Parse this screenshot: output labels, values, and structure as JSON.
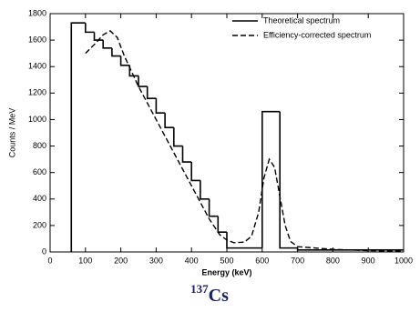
{
  "chart_data": {
    "type": "histogram",
    "title_isotope": "137",
    "title": "Cs",
    "xlabel": "Energy (keV)",
    "ylabel": "Counts / MeV",
    "xlim": [
      0,
      1000
    ],
    "ylim": [
      0,
      1800
    ],
    "xticks": [
      0,
      100,
      200,
      300,
      400,
      500,
      600,
      700,
      800,
      900,
      1000
    ],
    "yticks": [
      0,
      200,
      400,
      600,
      800,
      1000,
      1200,
      1400,
      1600,
      1800
    ],
    "legend": "upper right",
    "series": [
      {
        "name": "Theoretical spectrum",
        "type": "step",
        "color": "#000000",
        "dash": false,
        "bins": [
          60,
          100,
          125,
          150,
          175,
          200,
          225,
          250,
          275,
          300,
          325,
          350,
          375,
          400,
          425,
          450,
          475,
          500,
          600,
          650,
          700,
          1000
        ],
        "values": [
          1730,
          1660,
          1600,
          1540,
          1480,
          1410,
          1330,
          1250,
          1160,
          1050,
          940,
          800,
          680,
          540,
          400,
          270,
          150,
          30,
          1060,
          30,
          15
        ]
      },
      {
        "name": "Efficiency-corrected spectrum",
        "type": "line",
        "color": "#000000",
        "dash": true,
        "x": [
          100,
          130,
          150,
          170,
          190,
          210,
          250,
          300,
          350,
          400,
          450,
          480,
          500,
          520,
          550,
          570,
          590,
          605,
          620,
          635,
          650,
          665,
          680,
          700,
          800,
          900,
          1000
        ],
        "values": [
          1500,
          1580,
          1640,
          1670,
          1620,
          1480,
          1250,
          1000,
          750,
          500,
          250,
          130,
          90,
          70,
          75,
          120,
          300,
          560,
          700,
          640,
          420,
          200,
          80,
          40,
          20,
          10,
          5
        ]
      }
    ]
  }
}
